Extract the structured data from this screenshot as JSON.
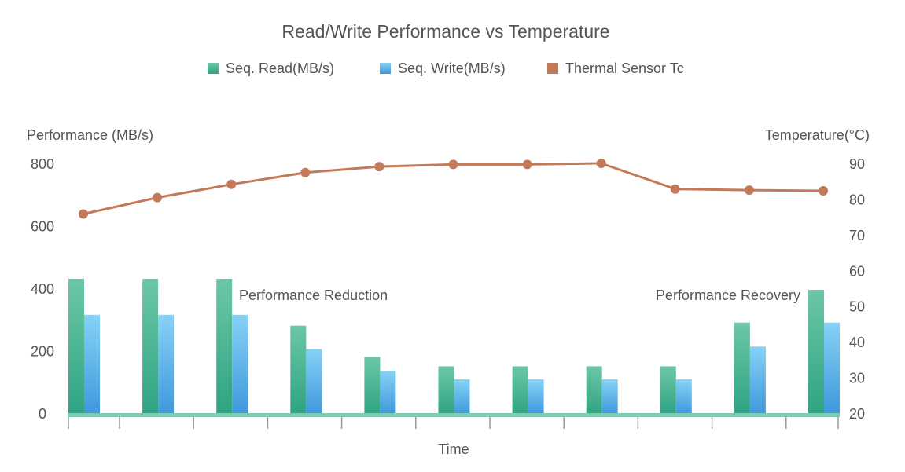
{
  "chart_data": {
    "type": "bar",
    "title": "Read/Write Performance vs Temperature",
    "xlabel": "Time",
    "ylabel": "Performance (MB/s)",
    "y2label": "Temperature(°C)",
    "ylim": [
      0,
      800
    ],
    "y2lim": [
      20,
      90
    ],
    "yticks": [
      "0",
      "200",
      "400",
      "600",
      "800"
    ],
    "y2ticks": [
      "20",
      "30",
      "40",
      "50",
      "60",
      "70",
      "80",
      "90"
    ],
    "grid": false,
    "legend_position": "top-center",
    "series": [
      {
        "name": "Seq. Read(MB/s)",
        "type": "bar",
        "axis": "left",
        "color": "#3aaf8a",
        "values": [
          430,
          430,
          430,
          280,
          180,
          150,
          150,
          150,
          150,
          290,
          395
        ]
      },
      {
        "name": "Seq. Write(MB/s)",
        "type": "bar",
        "axis": "left",
        "color": "#56b2e8",
        "values": [
          315,
          315,
          315,
          205,
          135,
          108,
          108,
          108,
          108,
          213,
          290
        ]
      },
      {
        "name": "Thermal Sensor Tc",
        "type": "line",
        "axis": "right",
        "color": "#c27a5a",
        "values": [
          75.8,
          80.4,
          84.1,
          87.4,
          89.1,
          89.7,
          89.7,
          90.0,
          82.8,
          82.5,
          82.3
        ]
      }
    ],
    "annotations": [
      {
        "text": "Performance Reduction"
      },
      {
        "text": "Performance Recovery"
      }
    ]
  }
}
